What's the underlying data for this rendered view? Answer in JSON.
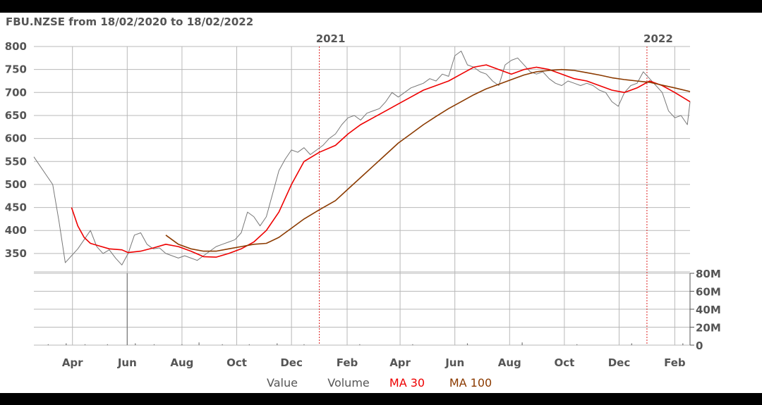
{
  "chart_data": {
    "type": "line",
    "title": "FBU.NZSE from 18/02/2020 to 18/02/2022",
    "year_markers": [
      {
        "label": "2021",
        "date": "2021-01-01"
      },
      {
        "label": "2022",
        "date": "2022-01-01"
      }
    ],
    "x_tick_labels": [
      {
        "label": "Apr",
        "date": "2020-04-01"
      },
      {
        "label": "Jun",
        "date": "2020-06-01"
      },
      {
        "label": "Aug",
        "date": "2020-08-01"
      },
      {
        "label": "Oct",
        "date": "2020-10-01"
      },
      {
        "label": "Dec",
        "date": "2020-12-01"
      },
      {
        "label": "Feb",
        "date": "2021-02-01"
      },
      {
        "label": "Apr",
        "date": "2021-04-01"
      },
      {
        "label": "Jun",
        "date": "2021-06-01"
      },
      {
        "label": "Aug",
        "date": "2021-08-01"
      },
      {
        "label": "Oct",
        "date": "2021-10-01"
      },
      {
        "label": "Dec",
        "date": "2021-12-01"
      },
      {
        "label": "Feb",
        "date": "2022-02-01"
      }
    ],
    "price_axis": {
      "ticks": [
        "800",
        "750",
        "700",
        "650",
        "600",
        "550",
        "500",
        "450",
        "400",
        "350"
      ],
      "ylim": [
        310,
        800
      ]
    },
    "volume_axis": {
      "ticks": [
        "80M",
        "60M",
        "40M",
        "20M",
        "0"
      ],
      "ylim": [
        0,
        80
      ]
    },
    "legend": [
      {
        "label": "Value",
        "color": "#555555"
      },
      {
        "label": "Volume",
        "color": "#555555"
      },
      {
        "label": "MA 30",
        "color": "#ee0000"
      },
      {
        "label": "MA 100",
        "color": "#8b3a00"
      }
    ],
    "series": [
      {
        "key": "value",
        "color": "#777777",
        "points": [
          [
            "2020-02-18",
            560
          ],
          [
            "2020-02-25",
            540
          ],
          [
            "2020-03-03",
            520
          ],
          [
            "2020-03-10",
            500
          ],
          [
            "2020-03-17",
            420
          ],
          [
            "2020-03-24",
            330
          ],
          [
            "2020-03-31",
            345
          ],
          [
            "2020-04-07",
            360
          ],
          [
            "2020-04-14",
            380
          ],
          [
            "2020-04-21",
            400
          ],
          [
            "2020-04-28",
            365
          ],
          [
            "2020-05-05",
            350
          ],
          [
            "2020-05-12",
            358
          ],
          [
            "2020-05-19",
            340
          ],
          [
            "2020-05-26",
            325
          ],
          [
            "2020-06-02",
            350
          ],
          [
            "2020-06-09",
            390
          ],
          [
            "2020-06-16",
            395
          ],
          [
            "2020-06-23",
            370
          ],
          [
            "2020-06-30",
            360
          ],
          [
            "2020-07-07",
            362
          ],
          [
            "2020-07-14",
            350
          ],
          [
            "2020-07-21",
            345
          ],
          [
            "2020-07-28",
            340
          ],
          [
            "2020-08-04",
            345
          ],
          [
            "2020-08-11",
            340
          ],
          [
            "2020-08-18",
            335
          ],
          [
            "2020-08-25",
            345
          ],
          [
            "2020-09-01",
            355
          ],
          [
            "2020-09-08",
            365
          ],
          [
            "2020-09-15",
            370
          ],
          [
            "2020-09-22",
            375
          ],
          [
            "2020-09-29",
            380
          ],
          [
            "2020-10-06",
            395
          ],
          [
            "2020-10-13",
            440
          ],
          [
            "2020-10-20",
            430
          ],
          [
            "2020-10-27",
            410
          ],
          [
            "2020-11-03",
            430
          ],
          [
            "2020-11-10",
            480
          ],
          [
            "2020-11-17",
            530
          ],
          [
            "2020-11-24",
            555
          ],
          [
            "2020-12-01",
            575
          ],
          [
            "2020-12-08",
            570
          ],
          [
            "2020-12-15",
            580
          ],
          [
            "2020-12-22",
            565
          ],
          [
            "2021-01-05",
            585
          ],
          [
            "2021-01-12",
            600
          ],
          [
            "2021-01-19",
            610
          ],
          [
            "2021-01-26",
            630
          ],
          [
            "2021-02-02",
            645
          ],
          [
            "2021-02-09",
            650
          ],
          [
            "2021-02-16",
            640
          ],
          [
            "2021-02-23",
            655
          ],
          [
            "2021-03-02",
            660
          ],
          [
            "2021-03-09",
            665
          ],
          [
            "2021-03-16",
            680
          ],
          [
            "2021-03-23",
            700
          ],
          [
            "2021-03-30",
            690
          ],
          [
            "2021-04-06",
            700
          ],
          [
            "2021-04-13",
            710
          ],
          [
            "2021-04-20",
            715
          ],
          [
            "2021-04-27",
            720
          ],
          [
            "2021-05-04",
            730
          ],
          [
            "2021-05-11",
            725
          ],
          [
            "2021-05-18",
            740
          ],
          [
            "2021-05-25",
            735
          ],
          [
            "2021-06-01",
            780
          ],
          [
            "2021-06-08",
            790
          ],
          [
            "2021-06-15",
            760
          ],
          [
            "2021-06-22",
            755
          ],
          [
            "2021-06-29",
            745
          ],
          [
            "2021-07-06",
            740
          ],
          [
            "2021-07-13",
            725
          ],
          [
            "2021-07-20",
            715
          ],
          [
            "2021-07-27",
            760
          ],
          [
            "2021-08-03",
            770
          ],
          [
            "2021-08-10",
            775
          ],
          [
            "2021-08-17",
            760
          ],
          [
            "2021-08-24",
            745
          ],
          [
            "2021-08-31",
            740
          ],
          [
            "2021-09-07",
            745
          ],
          [
            "2021-09-14",
            730
          ],
          [
            "2021-09-21",
            720
          ],
          [
            "2021-09-28",
            715
          ],
          [
            "2021-10-05",
            725
          ],
          [
            "2021-10-12",
            720
          ],
          [
            "2021-10-19",
            715
          ],
          [
            "2021-10-26",
            720
          ],
          [
            "2021-11-02",
            715
          ],
          [
            "2021-11-09",
            705
          ],
          [
            "2021-11-16",
            700
          ],
          [
            "2021-11-23",
            680
          ],
          [
            "2021-11-30",
            670
          ],
          [
            "2021-12-07",
            700
          ],
          [
            "2021-12-14",
            715
          ],
          [
            "2021-12-21",
            720
          ],
          [
            "2021-12-28",
            745
          ],
          [
            "2022-01-04",
            730
          ],
          [
            "2022-01-11",
            715
          ],
          [
            "2022-01-18",
            700
          ],
          [
            "2022-01-25",
            660
          ],
          [
            "2022-02-01",
            645
          ],
          [
            "2022-02-08",
            650
          ],
          [
            "2022-02-15",
            630
          ],
          [
            "2022-02-18",
            680
          ]
        ]
      },
      {
        "key": "ma30",
        "color": "#ee0000",
        "points": [
          [
            "2020-03-31",
            450
          ],
          [
            "2020-04-07",
            410
          ],
          [
            "2020-04-14",
            385
          ],
          [
            "2020-04-21",
            372
          ],
          [
            "2020-04-28",
            368
          ],
          [
            "2020-05-12",
            360
          ],
          [
            "2020-05-26",
            358
          ],
          [
            "2020-06-02",
            352
          ],
          [
            "2020-06-16",
            355
          ],
          [
            "2020-06-30",
            362
          ],
          [
            "2020-07-14",
            370
          ],
          [
            "2020-07-28",
            365
          ],
          [
            "2020-08-11",
            355
          ],
          [
            "2020-08-25",
            343
          ],
          [
            "2020-09-08",
            342
          ],
          [
            "2020-09-22",
            350
          ],
          [
            "2020-10-06",
            360
          ],
          [
            "2020-10-20",
            375
          ],
          [
            "2020-11-03",
            400
          ],
          [
            "2020-11-17",
            440
          ],
          [
            "2020-12-01",
            500
          ],
          [
            "2020-12-15",
            550
          ],
          [
            "2021-01-01",
            570
          ],
          [
            "2021-01-19",
            585
          ],
          [
            "2021-02-02",
            610
          ],
          [
            "2021-02-16",
            630
          ],
          [
            "2021-03-02",
            645
          ],
          [
            "2021-03-16",
            660
          ],
          [
            "2021-03-30",
            675
          ],
          [
            "2021-04-13",
            690
          ],
          [
            "2021-04-27",
            705
          ],
          [
            "2021-05-11",
            715
          ],
          [
            "2021-05-25",
            725
          ],
          [
            "2021-06-08",
            740
          ],
          [
            "2021-06-22",
            755
          ],
          [
            "2021-07-06",
            760
          ],
          [
            "2021-07-20",
            750
          ],
          [
            "2021-08-03",
            740
          ],
          [
            "2021-08-17",
            750
          ],
          [
            "2021-08-31",
            755
          ],
          [
            "2021-09-14",
            750
          ],
          [
            "2021-09-28",
            740
          ],
          [
            "2021-10-12",
            730
          ],
          [
            "2021-10-26",
            725
          ],
          [
            "2021-11-09",
            715
          ],
          [
            "2021-11-23",
            705
          ],
          [
            "2021-12-07",
            700
          ],
          [
            "2021-12-21",
            710
          ],
          [
            "2022-01-04",
            725
          ],
          [
            "2022-01-18",
            715
          ],
          [
            "2022-02-01",
            700
          ],
          [
            "2022-02-18",
            680
          ]
        ]
      },
      {
        "key": "ma100",
        "color": "#8b3a00",
        "points": [
          [
            "2020-07-14",
            390
          ],
          [
            "2020-07-28",
            370
          ],
          [
            "2020-08-11",
            360
          ],
          [
            "2020-08-25",
            355
          ],
          [
            "2020-09-08",
            355
          ],
          [
            "2020-09-22",
            360
          ],
          [
            "2020-10-06",
            365
          ],
          [
            "2020-10-20",
            370
          ],
          [
            "2020-11-03",
            372
          ],
          [
            "2020-11-17",
            385
          ],
          [
            "2020-12-01",
            405
          ],
          [
            "2020-12-15",
            425
          ],
          [
            "2021-01-01",
            445
          ],
          [
            "2021-01-19",
            465
          ],
          [
            "2021-02-02",
            490
          ],
          [
            "2021-02-16",
            515
          ],
          [
            "2021-03-02",
            540
          ],
          [
            "2021-03-16",
            565
          ],
          [
            "2021-03-30",
            590
          ],
          [
            "2021-04-13",
            610
          ],
          [
            "2021-04-27",
            630
          ],
          [
            "2021-05-11",
            648
          ],
          [
            "2021-05-25",
            665
          ],
          [
            "2021-06-08",
            680
          ],
          [
            "2021-06-22",
            695
          ],
          [
            "2021-07-06",
            708
          ],
          [
            "2021-07-20",
            718
          ],
          [
            "2021-08-03",
            728
          ],
          [
            "2021-08-17",
            738
          ],
          [
            "2021-08-31",
            745
          ],
          [
            "2021-09-14",
            748
          ],
          [
            "2021-09-28",
            750
          ],
          [
            "2021-10-12",
            748
          ],
          [
            "2021-10-26",
            743
          ],
          [
            "2021-11-09",
            738
          ],
          [
            "2021-11-23",
            732
          ],
          [
            "2021-12-07",
            728
          ],
          [
            "2021-12-21",
            725
          ],
          [
            "2022-01-04",
            722
          ],
          [
            "2022-01-18",
            716
          ],
          [
            "2022-02-01",
            710
          ],
          [
            "2022-02-18",
            702
          ]
        ]
      }
    ],
    "volume_points": [
      [
        "2020-03-05",
        1
      ],
      [
        "2020-03-25",
        2
      ],
      [
        "2020-04-15",
        1
      ],
      [
        "2020-05-10",
        1
      ],
      [
        "2020-06-01",
        80
      ],
      [
        "2020-06-10",
        2
      ],
      [
        "2020-07-01",
        1
      ],
      [
        "2020-08-01",
        1
      ],
      [
        "2020-08-20",
        3
      ],
      [
        "2020-09-15",
        1
      ],
      [
        "2020-10-15",
        1
      ],
      [
        "2020-11-15",
        2
      ],
      [
        "2020-12-15",
        1
      ],
      [
        "2021-02-15",
        1
      ],
      [
        "2021-04-15",
        1
      ],
      [
        "2021-06-15",
        2
      ],
      [
        "2021-08-15",
        3
      ],
      [
        "2021-10-15",
        1
      ],
      [
        "2021-12-15",
        2
      ],
      [
        "2022-02-10",
        2
      ]
    ]
  }
}
